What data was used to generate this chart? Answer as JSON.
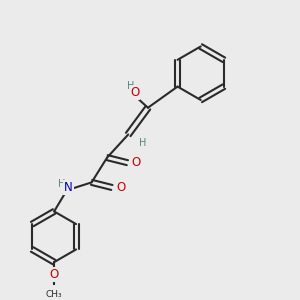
{
  "bg_color": "#ebebeb",
  "bond_color": "#2a2a2a",
  "bond_width": 1.5,
  "atom_colors": {
    "O": "#cc0000",
    "N": "#0000bb",
    "C": "#2a2a2a",
    "H": "#5a8080"
  },
  "font_size": 8.5,
  "fig_width": 3.0,
  "fig_height": 3.0,
  "dpi": 100
}
